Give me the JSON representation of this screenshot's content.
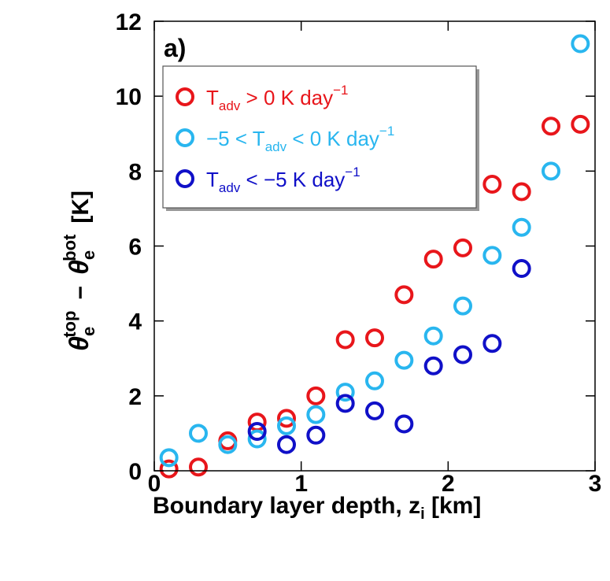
{
  "chart_data": {
    "type": "scatter",
    "panel_label": "a)",
    "xlabel": {
      "main": "Boundary layer depth, z",
      "sub": "i",
      "unit": " [km]"
    },
    "ylabel": {
      "theta": "θ",
      "e": "e",
      "top": "top",
      "minus": "−",
      "bot": "bot",
      "unit": "[K]"
    },
    "xlim": [
      0,
      3
    ],
    "ylim": [
      0,
      12
    ],
    "xticks": [
      0,
      1,
      2,
      3
    ],
    "yticks": [
      0,
      2,
      4,
      6,
      8,
      10,
      12
    ],
    "grid": false,
    "legend_position": "top-left",
    "series": [
      {
        "color": "#e8161b",
        "legend": {
          "pre": "T",
          "sub": "adv",
          "post": " > 0 K day",
          "sup": "−1"
        },
        "points": [
          [
            0.1,
            0.05
          ],
          [
            0.3,
            0.1
          ],
          [
            0.5,
            0.8
          ],
          [
            0.7,
            1.3
          ],
          [
            0.9,
            1.4
          ],
          [
            1.1,
            2.0
          ],
          [
            1.3,
            3.5
          ],
          [
            1.5,
            3.55
          ],
          [
            1.7,
            4.7
          ],
          [
            1.9,
            5.65
          ],
          [
            2.1,
            5.95
          ],
          [
            2.3,
            7.65
          ],
          [
            2.5,
            7.45
          ],
          [
            2.7,
            9.2
          ],
          [
            2.9,
            9.25
          ]
        ]
      },
      {
        "color": "#29b6ef",
        "legend": {
          "pre": "−5 < T",
          "sub": "adv",
          "post": " < 0 K day",
          "sup": "−1"
        },
        "points": [
          [
            0.1,
            0.35
          ],
          [
            0.3,
            1.0
          ],
          [
            0.5,
            0.7
          ],
          [
            0.7,
            0.85
          ],
          [
            0.9,
            1.2
          ],
          [
            1.1,
            1.5
          ],
          [
            1.3,
            2.1
          ],
          [
            1.5,
            2.4
          ],
          [
            1.7,
            2.95
          ],
          [
            1.9,
            3.6
          ],
          [
            2.1,
            4.4
          ],
          [
            2.3,
            5.75
          ],
          [
            2.5,
            6.5
          ],
          [
            2.7,
            8.0
          ],
          [
            2.9,
            11.4
          ]
        ]
      },
      {
        "color": "#1010c8",
        "legend": {
          "pre": "T",
          "sub": "adv",
          "post": " < −5 K day",
          "sup": "−1"
        },
        "points": [
          [
            0.7,
            1.05
          ],
          [
            0.9,
            0.7
          ],
          [
            1.1,
            0.95
          ],
          [
            1.3,
            1.8
          ],
          [
            1.5,
            1.6
          ],
          [
            1.7,
            1.25
          ],
          [
            1.9,
            2.8
          ],
          [
            2.1,
            3.1
          ],
          [
            2.3,
            3.4
          ],
          [
            2.5,
            5.4
          ]
        ]
      }
    ]
  }
}
